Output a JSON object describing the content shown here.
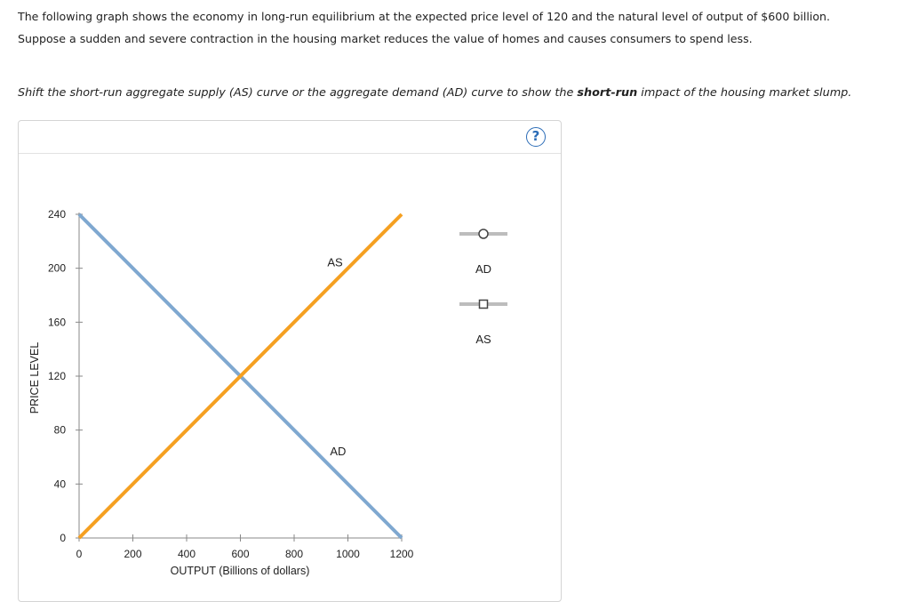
{
  "intro": {
    "line1": "The following graph shows the economy in long-run equilibrium at the expected price level of 120 and the natural level of output of $600 billion.",
    "line2": "Suppose a sudden and severe contraction in the housing market reduces the value of homes and causes consumers to spend less."
  },
  "instruction": {
    "before": "Shift the short-run aggregate supply (AS) curve or the aggregate demand (AD) curve to show the ",
    "bold": "short-run",
    "after": " impact of the housing market slump."
  },
  "help": {
    "label": "?"
  },
  "legend": {
    "ad": {
      "label": "AD",
      "marker": "circle",
      "color": "#bdbdbd"
    },
    "as": {
      "label": "AS",
      "marker": "square",
      "color": "#bdbdbd"
    }
  },
  "chart_data": {
    "type": "line",
    "xlabel": "OUTPUT (Billions of dollars)",
    "ylabel": "PRICE LEVEL",
    "xlim": [
      0,
      1200
    ],
    "ylim": [
      0,
      240
    ],
    "x_ticks": [
      0,
      200,
      400,
      600,
      800,
      1000,
      1200
    ],
    "y_ticks": [
      0,
      40,
      80,
      120,
      160,
      200,
      240
    ],
    "series": [
      {
        "name": "AD",
        "color": "#7fa8d0",
        "points": [
          [
            0,
            240
          ],
          [
            1200,
            0
          ]
        ],
        "label_at": [
          960,
          60
        ]
      },
      {
        "name": "AS",
        "color": "#f5a021",
        "points": [
          [
            0,
            0
          ],
          [
            1200,
            240
          ]
        ],
        "label_at": [
          950,
          200
        ]
      }
    ]
  }
}
